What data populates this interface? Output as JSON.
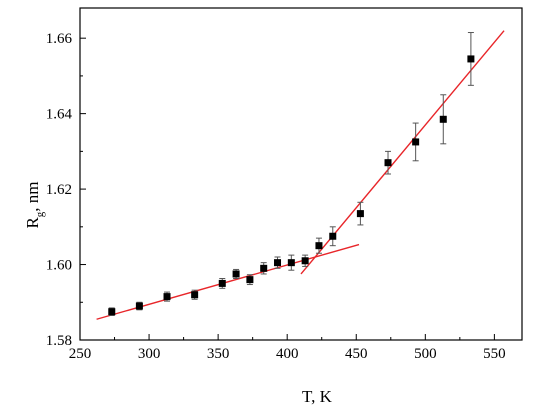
{
  "chart_data": {
    "type": "scatter",
    "xlabel": "T, K",
    "ylabel_main": "R",
    "ylabel_sub": "g",
    "ylabel_unit": ", nm",
    "xlim": [
      250,
      570
    ],
    "ylim": [
      1.58,
      1.668
    ],
    "xticks": [
      250,
      300,
      350,
      400,
      450,
      500,
      550
    ],
    "yticks": [
      1.58,
      1.6,
      1.62,
      1.64,
      1.66
    ],
    "xtick_labels": [
      "250",
      "300",
      "350",
      "400",
      "450",
      "500",
      "550"
    ],
    "ytick_labels": [
      "1.58",
      "1.60",
      "1.62",
      "1.64",
      "1.66"
    ],
    "grid": false,
    "point_color": "#000000",
    "fit_color": "#e8262a",
    "points": [
      {
        "x": 273,
        "y": 1.5875,
        "err": 0.001
      },
      {
        "x": 293,
        "y": 1.589,
        "err": 0.001
      },
      {
        "x": 313,
        "y": 1.5915,
        "err": 0.0012
      },
      {
        "x": 333,
        "y": 1.592,
        "err": 0.0012
      },
      {
        "x": 353,
        "y": 1.595,
        "err": 0.0013
      },
      {
        "x": 363,
        "y": 1.5975,
        "err": 0.0012
      },
      {
        "x": 373,
        "y": 1.596,
        "err": 0.0013
      },
      {
        "x": 383,
        "y": 1.599,
        "err": 0.0015
      },
      {
        "x": 393,
        "y": 1.6005,
        "err": 0.0015
      },
      {
        "x": 403,
        "y": 1.6005,
        "err": 0.002
      },
      {
        "x": 413,
        "y": 1.601,
        "err": 0.0015
      },
      {
        "x": 423,
        "y": 1.605,
        "err": 0.002
      },
      {
        "x": 433,
        "y": 1.6075,
        "err": 0.0025
      },
      {
        "x": 453,
        "y": 1.6135,
        "err": 0.003
      },
      {
        "x": 473,
        "y": 1.627,
        "err": 0.003
      },
      {
        "x": 493,
        "y": 1.6325,
        "err": 0.005
      },
      {
        "x": 513,
        "y": 1.6385,
        "err": 0.0065
      },
      {
        "x": 533,
        "y": 1.6545,
        "err": 0.007
      }
    ],
    "fit_lines": [
      {
        "x": [
          262,
          452
        ],
        "y": [
          1.5855,
          1.6053
        ]
      },
      {
        "x": [
          410,
          557
        ],
        "y": [
          1.5975,
          1.662
        ]
      }
    ]
  }
}
